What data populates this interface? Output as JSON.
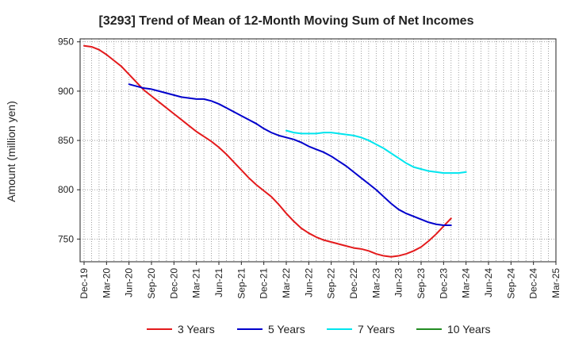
{
  "chart_data": {
    "type": "line",
    "title": "[3293]  Trend of Mean of 12-Month Moving Sum of Net Incomes",
    "xlabel": "",
    "ylabel": "Amount (million yen)",
    "ylim": [
      727,
      953
    ],
    "yticks": [
      750,
      800,
      850,
      900,
      950
    ],
    "xtick_labels": [
      "Dec-19",
      "Mar-20",
      "Jun-20",
      "Sep-20",
      "Dec-20",
      "Mar-21",
      "Jun-21",
      "Sep-21",
      "Dec-21",
      "Mar-22",
      "Jun-22",
      "Sep-22",
      "Dec-22",
      "Mar-23",
      "Jun-23",
      "Sep-23",
      "Dec-23",
      "Mar-24",
      "Jun-24",
      "Sep-24",
      "Dec-24",
      "Mar-25"
    ],
    "x_count": 64,
    "grid": true,
    "legend": "bottom",
    "series": [
      {
        "name": "3 Years",
        "color": "#e31a1c",
        "start_index": 0,
        "values": [
          946,
          945,
          942,
          937,
          931,
          925,
          917,
          909,
          901,
          895,
          889,
          883,
          877,
          871,
          865,
          859,
          854,
          849,
          843,
          836,
          828,
          820,
          812,
          805,
          799,
          793,
          785,
          776,
          768,
          761,
          756,
          752,
          749,
          747,
          745,
          743,
          741,
          740,
          738,
          735,
          733,
          732,
          733,
          735,
          738,
          742,
          748,
          755,
          763,
          771
        ]
      },
      {
        "name": "5 Years",
        "color": "#0000cc",
        "start_index": 6,
        "values": [
          907,
          905,
          903,
          902,
          900,
          898,
          896,
          894,
          893,
          892,
          892,
          890,
          887,
          883,
          879,
          875,
          871,
          867,
          862,
          858,
          855,
          853,
          851,
          848,
          844,
          841,
          838,
          834,
          829,
          824,
          818,
          812,
          806,
          800,
          793,
          786,
          780,
          776,
          773,
          770,
          767,
          765,
          764,
          764
        ]
      },
      {
        "name": "7 Years",
        "color": "#00e5ee",
        "start_index": 27,
        "values": [
          860,
          858,
          857,
          857,
          857,
          858,
          858,
          857,
          856,
          855,
          853,
          850,
          846,
          842,
          837,
          832,
          827,
          823,
          821,
          819,
          818,
          817,
          817,
          817,
          818
        ]
      },
      {
        "name": "10 Years",
        "color": "#228b22",
        "start_index": 0,
        "values": []
      }
    ]
  }
}
